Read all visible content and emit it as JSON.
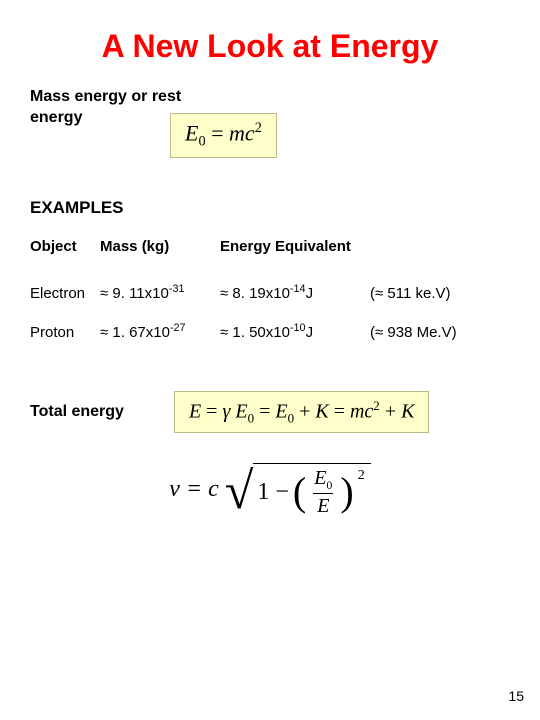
{
  "title": "A New Look at Energy",
  "subtitle": "Mass energy or rest energy",
  "equation1": {
    "html": "<span>E</span><span class='sub0'>0</span><span class='eq-plain'> = </span><span>mc</span><sup>2</sup>",
    "bg": "#ffffcc"
  },
  "examples_header": "EXAMPLES",
  "table": {
    "headers": {
      "object": "Object",
      "mass": "Mass (kg)",
      "energy": "Energy Equivalent"
    },
    "rows": [
      {
        "object": "Electron",
        "mass": "≈ 9. 11x10<sup class='s'>-31</sup>",
        "energy": "≈ 8. 19x10<sup class='s'>-14</sup>J",
        "ev": "(≈ 511 ke.V)"
      },
      {
        "object": "Proton",
        "mass": "≈ 1. 67x10<sup class='s'>-27</sup>",
        "energy": "≈ 1. 50x10<sup class='s'>-10</sup>J",
        "ev": "(≈ 938 Me.V)"
      }
    ]
  },
  "total_label": "Total energy",
  "equation2": {
    "html": "<span>E</span><span class='eq-plain'> = </span>&gamma; <span>E</span><span class='sub0'>0</span><span class='eq-plain'> = </span><span>E</span><span class='sub0'>0</span><span class='eq-plain'> + </span><span>K</span><span class='eq-plain'> = </span><span>mc</span><sup>2</sup><span class='eq-plain'> + </span><span>K</span>"
  },
  "equation3": {
    "lhs": "v = c",
    "inner_minus": "1 −",
    "frac_num_html": "E<span style='font-size:0.6em;font-style:normal;vertical-align:sub'>0</span>",
    "frac_den": "E",
    "exp": "2"
  },
  "page_number": "15",
  "colors": {
    "title": "#ff0000",
    "eq_bg": "#ffffcc",
    "eq_border": "#bbbb88",
    "bg": "#ffffff"
  }
}
